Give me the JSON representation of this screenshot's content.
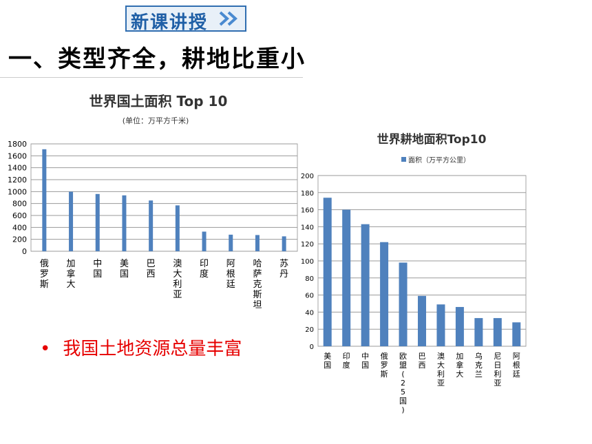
{
  "header": {
    "badge_label": "新课讲授"
  },
  "page_title": "一、类型齐全，耕地比重小",
  "bullet": {
    "symbol": "•",
    "text": "我国土地资源总量丰富"
  },
  "colors": {
    "bar": "#4f81bd",
    "badge_text": "#1f5fa6",
    "bullet_text": "#e60000"
  },
  "chart_data": [
    {
      "type": "bar",
      "title": "世界国土面积 Top 10",
      "subtitle": "(单位：万平方千米)",
      "categories": [
        "俄罗斯",
        "加拿大",
        "中国",
        "美国",
        "巴西",
        "澳大利亚",
        "印度",
        "阿根廷",
        "哈萨克斯坦",
        "苏丹"
      ],
      "values": [
        1710,
        998,
        960,
        937,
        851,
        769,
        329,
        278,
        272,
        250
      ],
      "ylim": [
        0,
        1800
      ],
      "yticks": [
        0,
        200,
        400,
        600,
        800,
        1000,
        1200,
        1400,
        1600,
        1800
      ],
      "grid": true
    },
    {
      "type": "bar",
      "title": "世界耕地面积Top10",
      "legend": "面积（万平方公里）",
      "categories": [
        "美国",
        "印度",
        "中国",
        "俄罗斯",
        "欧盟(25国)",
        "巴西",
        "澳大利亚",
        "加拿大",
        "乌克兰",
        "尼日利亚",
        "阿根廷"
      ],
      "values": [
        174,
        160,
        143,
        122,
        98,
        59,
        49,
        46,
        33,
        33,
        28
      ],
      "ylim": [
        0,
        200
      ],
      "yticks": [
        0,
        20,
        40,
        60,
        80,
        100,
        120,
        140,
        160,
        180,
        200
      ],
      "grid": true
    }
  ]
}
